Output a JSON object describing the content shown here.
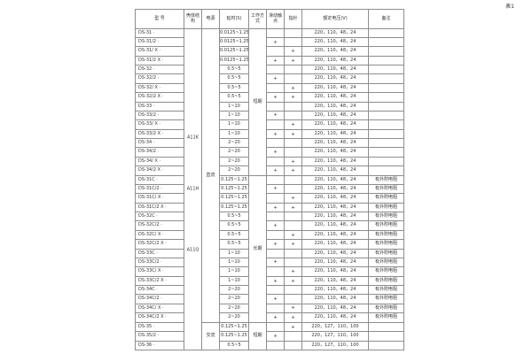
{
  "page_title": "表1",
  "table": {
    "headers": {
      "model": "型 号",
      "shell": "壳体结构",
      "power": "电源",
      "delay": "延时(S)",
      "work_mode": "工作方式",
      "slide_contact": "滑动触点",
      "pointer": "指针",
      "voltage": "额定电压(V)",
      "remark": "备注"
    },
    "shell_labels": [
      {
        "text": "A11K",
        "top_pct": 34
      },
      {
        "text": "A11H",
        "top_pct": 50
      },
      {
        "text": "A11Q",
        "top_pct": 69
      }
    ],
    "power_groups": [
      {
        "label": "直流",
        "rows": 32
      },
      {
        "label": "交流",
        "rows": 3
      }
    ],
    "work_groups": [
      {
        "label": "短期",
        "rows": 16
      },
      {
        "label": "长期",
        "rows": 16
      },
      {
        "label": "短期",
        "rows": 3
      }
    ],
    "rows": [
      {
        "model": "DS-31 ·",
        "delay": "0.0125~1.25",
        "slide": "",
        "pointer": "",
        "voltage": "220，110，48，24",
        "remark": ""
      },
      {
        "model": "DS-31/2 ·",
        "delay": "0.0125~1.25",
        "slide": "+",
        "pointer": "",
        "voltage": "220，110，48，24",
        "remark": ""
      },
      {
        "model": "DS-31/ X ·",
        "delay": "0.0125~1.25",
        "slide": "",
        "pointer": "+",
        "voltage": "220，110，48，24",
        "remark": ""
      },
      {
        "model": "DS-31/2 X ·",
        "delay": "0.0125~1.25",
        "slide": "+",
        "pointer": "+",
        "voltage": "220，110，48，24",
        "remark": ""
      },
      {
        "model": "DS-32 ·",
        "delay": "0.5~5",
        "slide": "",
        "pointer": "",
        "voltage": "220，110，48，24",
        "remark": ""
      },
      {
        "model": "DS-32/2 ·",
        "delay": "0.5~5",
        "slide": "+",
        "pointer": "",
        "voltage": "220，110，48，24",
        "remark": ""
      },
      {
        "model": "DS-32/ X ·",
        "delay": "0.5~5",
        "slide": "",
        "pointer": "+",
        "voltage": "220，110，48，24",
        "remark": ""
      },
      {
        "model": "DS-32/2 X ·",
        "delay": "0.5~5",
        "slide": "+",
        "pointer": "+",
        "voltage": "220，110，48，24",
        "remark": ""
      },
      {
        "model": "DS-33 ·",
        "delay": "1~10",
        "slide": "",
        "pointer": "",
        "voltage": "220，110，48，24",
        "remark": ""
      },
      {
        "model": "DS-33/2 ·",
        "delay": "1~10",
        "slide": "+",
        "pointer": "",
        "voltage": "220，110，48，24",
        "remark": ""
      },
      {
        "model": "DS-33/ X ·",
        "delay": "1~10",
        "slide": "",
        "pointer": "+",
        "voltage": "220，110，48，24",
        "remark": ""
      },
      {
        "model": "DS-33/2 X ·",
        "delay": "1~10",
        "slide": "+",
        "pointer": "+",
        "voltage": "220，110，48，24",
        "remark": ""
      },
      {
        "model": "DS-34 ·",
        "delay": "2~20",
        "slide": "",
        "pointer": "",
        "voltage": "220，110，48，24",
        "remark": ""
      },
      {
        "model": "DS-34/2 ·",
        "delay": "2~20",
        "slide": "+",
        "pointer": "",
        "voltage": "220，110，48，24",
        "remark": ""
      },
      {
        "model": "DS-34/ X ·",
        "delay": "2~20",
        "slide": "",
        "pointer": "+",
        "voltage": "220，110，48，24",
        "remark": ""
      },
      {
        "model": "DS-34/2 X ·",
        "delay": "2~20",
        "slide": "+",
        "pointer": "+",
        "voltage": "220，110，48，24",
        "remark": ""
      },
      {
        "model": "DS-31C ·",
        "delay": "0.125~1.25",
        "slide": "",
        "pointer": "",
        "voltage": "220，110，48，24",
        "remark": "有外附电阻"
      },
      {
        "model": "DS-31C/2 ·",
        "delay": "0.125~1.25",
        "slide": "+",
        "pointer": "",
        "voltage": "220，110，48，24",
        "remark": "有外附电阻"
      },
      {
        "model": "DS-31C/ X ·",
        "delay": "0.125~1.25",
        "slide": "",
        "pointer": "+",
        "voltage": "220，110，48，24",
        "remark": "有外附电阻"
      },
      {
        "model": "DS-31C/2 X ·",
        "delay": "0.125~1.25",
        "slide": "+",
        "pointer": "+",
        "voltage": "220，110，48，24",
        "remark": "有外附电阻"
      },
      {
        "model": "DS-32C ·",
        "delay": "0.5~5",
        "slide": "",
        "pointer": "",
        "voltage": "220，110，48，24",
        "remark": "有外附电阻"
      },
      {
        "model": "DS-32C/2 ·",
        "delay": "0.5~5",
        "slide": "+",
        "pointer": "",
        "voltage": "220，110，48，24",
        "remark": "有外附电阻"
      },
      {
        "model": "DS-32C/ X ·",
        "delay": "0.5~5",
        "slide": "",
        "pointer": "+",
        "voltage": "220，110，48，24",
        "remark": "有外附电阻"
      },
      {
        "model": "DS-32C/2 X ·",
        "delay": "0.5~5",
        "slide": "+",
        "pointer": "+",
        "voltage": "220，110，48，24",
        "remark": "有外附电阻"
      },
      {
        "model": "DS-33C ·",
        "delay": "1~10",
        "slide": "",
        "pointer": "",
        "voltage": "220，110，48，24",
        "remark": "有外附电阻"
      },
      {
        "model": "DS-33C/2 ·",
        "delay": "1~10",
        "slide": "+",
        "pointer": "",
        "voltage": "220，110，48，24",
        "remark": "有外附电阻"
      },
      {
        "model": "DS-33C/ X ·",
        "delay": "1~10",
        "slide": "",
        "pointer": "+",
        "voltage": "220，110，48，24",
        "remark": "有外附电阻"
      },
      {
        "model": "DS-33C/2 X ·",
        "delay": "1~10",
        "slide": "+",
        "pointer": "+",
        "voltage": "220，110，48，24",
        "remark": "有外附电阻"
      },
      {
        "model": "DS-34C ·",
        "delay": "2~20",
        "slide": "",
        "pointer": "",
        "voltage": "220，110，48，24",
        "remark": "有外附电阻"
      },
      {
        "model": "DS-34C/2 ·",
        "delay": "2~20",
        "slide": "+",
        "pointer": "",
        "voltage": "220，110，48，24",
        "remark": "有外附电阻"
      },
      {
        "model": "DS-34C/ X ·",
        "delay": "2~20",
        "slide": "",
        "pointer": "+",
        "voltage": "220，110，48，24",
        "remark": "有外附电阻"
      },
      {
        "model": "DS-34C/2 X ·",
        "delay": "2~20",
        "slide": "+",
        "pointer": "+",
        "voltage": "220，110，48，24",
        "remark": "有外附电阻"
      },
      {
        "model": "DS-35 ·",
        "delay": "0.125~1.25",
        "slide": "",
        "pointer": "+",
        "voltage": "220，127，110，100",
        "remark": ""
      },
      {
        "model": "DS-35/2 ·",
        "delay": "0.125~1.25",
        "slide": "+",
        "pointer": "",
        "voltage": "220，127，110，100",
        "remark": ""
      },
      {
        "model": "DS-36 ·",
        "delay": "0.5~5",
        "slide": "",
        "pointer": "",
        "voltage": "220，127，110，100",
        "remark": ""
      }
    ]
  }
}
